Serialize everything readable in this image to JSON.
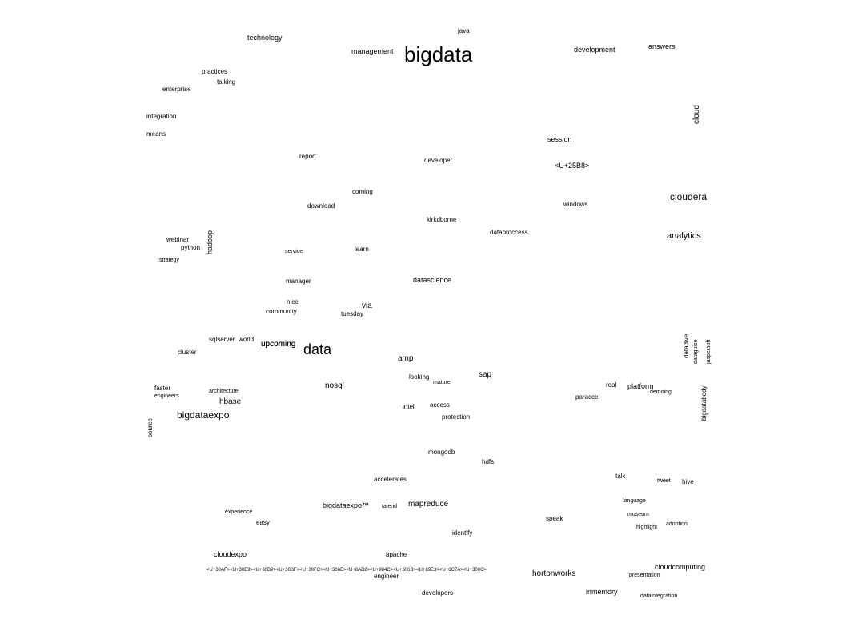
{
  "colors": {
    "text": "#000000",
    "background": "#ffffff"
  },
  "words": [
    "bigdata",
    "data",
    "analytics",
    "cloudera",
    "bigdataexpo",
    "cloud",
    "hadoop",
    "hbase",
    "nosql",
    "mapreduce",
    "hortonworks",
    "upcoming",
    "amp",
    "via",
    "datascience",
    "cloudexpo",
    "bigdataexpo™",
    "cloudcomputing",
    "inmemory",
    "technology",
    "management",
    "development",
    "answers",
    "session",
    "windows",
    "developer",
    "java",
    "enterprise",
    "practices",
    "talking",
    "integration",
    "means",
    "report",
    "coming",
    "download",
    "community",
    "manager",
    "nice",
    "upcoming",
    "sqlserver",
    "world",
    "cluster",
    "faster",
    "engineers",
    "source",
    "architecture",
    "access",
    "intel",
    "protection",
    "identify",
    "hdfs",
    "speak",
    "apache",
    "engineer",
    "developers",
    "accelerates",
    "talend",
    "mongodb",
    "paraccel",
    "platform",
    "real",
    "demoing",
    "hive",
    "talk",
    "tweet",
    "datadive",
    "bigdatabody",
    "dataguise",
    "jaspersoft",
    "kirkdborne",
    "dataproccess",
    "python",
    "webinar",
    "strategy",
    "service",
    "sap",
    "tuesday",
    "learn",
    "looking",
    "mature",
    "easy",
    "experience",
    "museum",
    "adoption",
    "language",
    "highlight",
    "dataintegration",
    "presentation",
    "<U+25B8>",
    "<U+30AF><U+30E9><U+30B9><U+30BF><U+30FC><U+306E><U+8AB2><U+984C><U+306B><U+89E3><U+6C7A><U+300C>"
  ]
}
